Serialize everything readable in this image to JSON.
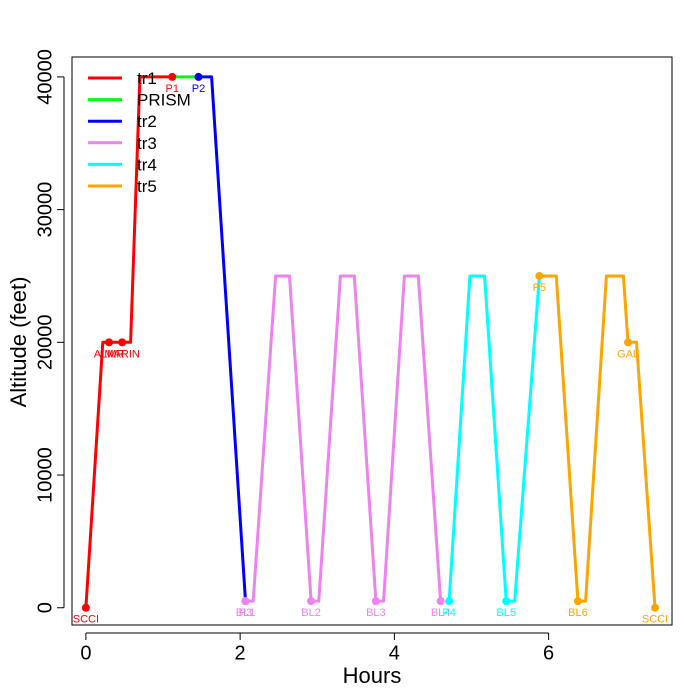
{
  "chart_data": {
    "type": "line",
    "xlabel": "Hours",
    "ylabel": "Altitude (feet)",
    "xlim": [
      -0.18,
      7.6
    ],
    "ylim": [
      -1300,
      41500
    ],
    "x_ticks": [
      0,
      2,
      4,
      6
    ],
    "y_ticks": [
      0,
      10000,
      20000,
      30000,
      40000
    ],
    "grid": false,
    "legend_position": "top-left",
    "series": [
      {
        "name": "tr1",
        "color": "#ff0000",
        "x": [
          0,
          0.22,
          0.3,
          0.47,
          0.58,
          0.7,
          1.12
        ],
        "y": [
          0,
          20000,
          20000,
          20000,
          20000,
          40000,
          40000
        ]
      },
      {
        "name": "PRISM",
        "color": "#00ff00",
        "x": [
          1.12,
          1.46
        ],
        "y": [
          40000,
          40000
        ]
      },
      {
        "name": "tr2",
        "color": "#0000ff",
        "x": [
          1.46,
          1.63,
          2.07
        ],
        "y": [
          40000,
          40000,
          500
        ]
      },
      {
        "name": "tr3",
        "color": "#ee82ee",
        "x": [
          2.07,
          2.17,
          2.46,
          2.64,
          2.92,
          3.02,
          3.3,
          3.48,
          3.76,
          3.86,
          4.13,
          4.31,
          4.6
        ],
        "y": [
          500,
          500,
          25000,
          25000,
          500,
          500,
          25000,
          25000,
          500,
          500,
          25000,
          25000,
          500
        ]
      },
      {
        "name": "tr4",
        "color": "#00ffff",
        "x": [
          4.71,
          4.98,
          5.17,
          5.45,
          5.56,
          5.88
        ],
        "y": [
          500,
          25000,
          25000,
          500,
          500,
          25000
        ]
      },
      {
        "name": "tr5",
        "color": "#ffa500",
        "x": [
          5.88,
          6.1,
          6.38,
          6.48,
          6.75,
          6.97,
          7.03,
          7.14,
          7.38
        ],
        "y": [
          25000,
          25000,
          500,
          500,
          25000,
          25000,
          20000,
          20000,
          0
        ]
      }
    ],
    "points": [
      {
        "label": "SCCI",
        "x": 0,
        "y": 0,
        "color": "#ff0000"
      },
      {
        "label": "ALMR",
        "x": 0.3,
        "y": 20000,
        "color": "#ff0000"
      },
      {
        "label": "MARIN",
        "x": 0.47,
        "y": 20000,
        "color": "#ff0000"
      },
      {
        "label": "P1",
        "x": 1.12,
        "y": 40000,
        "color": "#ff0000"
      },
      {
        "label": "P2",
        "x": 1.46,
        "y": 40000,
        "color": "#0000ff"
      },
      {
        "label": "P3",
        "x": 2.07,
        "y": 500,
        "color": "#ee82ee"
      },
      {
        "label": "BL1",
        "x": 2.07,
        "y": 500,
        "color": "#ee82ee"
      },
      {
        "label": "BL2",
        "x": 2.92,
        "y": 500,
        "color": "#ee82ee"
      },
      {
        "label": "BL3",
        "x": 3.76,
        "y": 500,
        "color": "#ee82ee"
      },
      {
        "label": "BL4",
        "x": 4.6,
        "y": 500,
        "color": "#ee82ee"
      },
      {
        "label": "P4",
        "x": 4.71,
        "y": 500,
        "color": "#00ffff"
      },
      {
        "label": "BL5",
        "x": 5.45,
        "y": 500,
        "color": "#00ffff"
      },
      {
        "label": "P5",
        "x": 5.88,
        "y": 25000,
        "color": "#ffa500"
      },
      {
        "label": "BL6",
        "x": 6.38,
        "y": 500,
        "color": "#ffa500"
      },
      {
        "label": "GAL",
        "x": 7.03,
        "y": 20000,
        "color": "#ffa500"
      },
      {
        "label": "SCCI",
        "x": 7.38,
        "y": 0,
        "color": "#ffa500"
      }
    ]
  }
}
